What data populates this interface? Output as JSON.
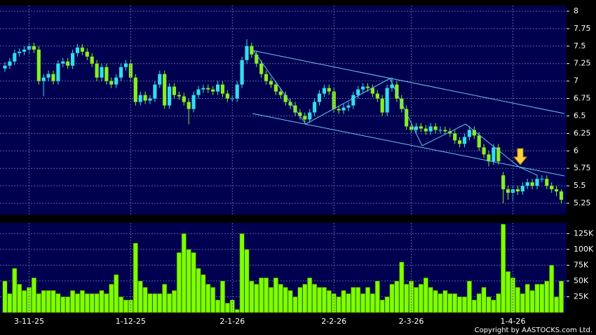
{
  "chart_data": [
    {
      "type": "candlestick",
      "up_color": "#33ddee",
      "down_color": "#88ee22",
      "grid": true,
      "ylim": [
        5.09,
        8.08
      ],
      "yticks": [
        5.25,
        5.5,
        5.75,
        6,
        6.25,
        6.5,
        6.75,
        7,
        7.25,
        7.5,
        7.75,
        8
      ],
      "open": [
        7.18,
        7.22,
        7.28,
        7.4,
        7.42,
        7.45,
        7.5,
        7.45,
        7.0,
        7.05,
        7.1,
        7.0,
        7.25,
        7.28,
        7.22,
        7.4,
        7.48,
        7.42,
        7.35,
        7.25,
        7.05,
        7.2,
        7.0,
        6.95,
        7.05,
        7.2,
        7.25,
        7.05,
        6.7,
        6.8,
        6.72,
        6.75,
        6.95,
        7.1,
        6.65,
        6.92,
        6.8,
        6.78,
        6.7,
        6.6,
        6.8,
        6.88,
        6.9,
        6.88,
        6.85,
        6.95,
        6.82,
        6.75,
        6.75,
        6.95,
        7.3,
        7.5,
        7.38,
        7.25,
        7.1,
        7.0,
        6.95,
        6.85,
        6.8,
        6.7,
        6.65,
        6.55,
        6.5,
        6.45,
        6.55,
        6.7,
        6.82,
        6.9,
        6.85,
        6.6,
        6.58,
        6.62,
        6.65,
        6.8,
        6.88,
        6.92,
        6.9,
        6.82,
        6.75,
        6.55,
        6.9,
        6.95,
        6.75,
        6.6,
        6.35,
        6.3,
        6.35,
        6.32,
        6.28,
        6.35,
        6.3,
        6.3,
        6.28,
        6.25,
        6.15,
        6.1,
        6.2,
        6.3,
        6.22,
        6.05,
        5.95,
        5.85,
        6.05,
        5.65,
        5.45,
        5.4,
        5.45,
        5.42,
        5.5,
        5.55,
        5.5,
        5.6,
        5.6,
        5.5,
        5.45,
        5.42
      ],
      "high": [
        7.27,
        7.33,
        7.45,
        7.47,
        7.5,
        7.55,
        7.55,
        7.5,
        7.1,
        7.15,
        7.15,
        7.3,
        7.33,
        7.33,
        7.45,
        7.53,
        7.53,
        7.47,
        7.4,
        7.3,
        7.25,
        7.25,
        7.05,
        7.1,
        7.25,
        7.3,
        7.3,
        7.1,
        6.85,
        6.85,
        6.8,
        7.0,
        7.15,
        7.15,
        6.97,
        6.97,
        6.85,
        6.83,
        6.75,
        6.85,
        6.93,
        6.95,
        6.95,
        6.93,
        7.0,
        7.0,
        6.87,
        6.8,
        7.0,
        7.35,
        7.6,
        7.55,
        7.43,
        7.3,
        7.15,
        7.05,
        7.0,
        6.9,
        6.85,
        6.75,
        6.7,
        6.6,
        6.55,
        6.6,
        6.75,
        6.87,
        6.95,
        6.95,
        6.9,
        6.65,
        6.67,
        6.7,
        6.85,
        6.93,
        6.97,
        6.97,
        6.95,
        6.87,
        6.8,
        6.95,
        7.05,
        7.0,
        6.8,
        6.65,
        6.4,
        6.4,
        6.4,
        6.37,
        6.4,
        6.4,
        6.35,
        6.35,
        6.33,
        6.3,
        6.2,
        6.25,
        6.35,
        6.35,
        6.27,
        6.1,
        6.0,
        6.1,
        6.1,
        5.7,
        5.5,
        5.5,
        5.5,
        5.55,
        5.6,
        5.6,
        5.65,
        5.65,
        5.65,
        5.55,
        5.5,
        5.45
      ],
      "low": [
        7.13,
        7.17,
        7.23,
        7.35,
        7.37,
        7.4,
        7.4,
        6.95,
        6.78,
        7.0,
        6.95,
        6.95,
        7.2,
        7.17,
        7.17,
        7.35,
        7.37,
        7.3,
        7.2,
        7.0,
        7.0,
        6.95,
        6.9,
        6.9,
        7.0,
        7.15,
        7.0,
        6.65,
        6.65,
        6.67,
        6.67,
        6.7,
        6.9,
        6.6,
        6.6,
        6.75,
        6.73,
        6.65,
        6.38,
        6.55,
        6.75,
        6.83,
        6.83,
        6.8,
        6.8,
        6.77,
        6.7,
        6.7,
        6.7,
        6.9,
        7.25,
        7.33,
        7.2,
        7.05,
        6.95,
        6.9,
        6.8,
        6.75,
        6.65,
        6.6,
        6.5,
        6.45,
        6.4,
        6.4,
        6.5,
        6.65,
        6.77,
        6.8,
        6.55,
        6.53,
        6.53,
        6.57,
        6.6,
        6.75,
        6.83,
        6.85,
        6.77,
        6.7,
        6.5,
        6.5,
        6.85,
        6.7,
        6.55,
        6.3,
        6.25,
        6.25,
        6.27,
        6.23,
        6.23,
        6.25,
        6.25,
        6.23,
        6.2,
        6.1,
        6.05,
        6.05,
        6.15,
        6.17,
        6.0,
        5.9,
        5.78,
        5.8,
        5.8,
        5.25,
        5.3,
        5.28,
        5.37,
        5.37,
        5.45,
        5.45,
        5.45,
        5.55,
        5.45,
        5.4,
        5.35,
        5.25
      ],
      "close": [
        7.22,
        7.28,
        7.4,
        7.42,
        7.45,
        7.5,
        7.45,
        7.0,
        7.05,
        7.1,
        7.0,
        7.25,
        7.28,
        7.22,
        7.4,
        7.48,
        7.42,
        7.35,
        7.25,
        7.05,
        7.2,
        7.0,
        6.95,
        7.05,
        7.2,
        7.25,
        7.05,
        6.7,
        6.8,
        6.72,
        6.75,
        6.95,
        7.1,
        6.65,
        6.92,
        6.8,
        6.78,
        6.7,
        6.6,
        6.8,
        6.88,
        6.9,
        6.88,
        6.85,
        6.95,
        6.82,
        6.75,
        6.75,
        6.95,
        7.3,
        7.5,
        7.38,
        7.25,
        7.1,
        7.0,
        6.95,
        6.85,
        6.8,
        6.7,
        6.65,
        6.55,
        6.5,
        6.45,
        6.55,
        6.7,
        6.82,
        6.9,
        6.85,
        6.6,
        6.58,
        6.62,
        6.65,
        6.8,
        6.88,
        6.92,
        6.9,
        6.82,
        6.75,
        6.55,
        6.9,
        6.95,
        6.75,
        6.6,
        6.35,
        6.3,
        6.35,
        6.32,
        6.28,
        6.35,
        6.3,
        6.3,
        6.28,
        6.25,
        6.15,
        6.1,
        6.2,
        6.3,
        6.22,
        6.05,
        5.95,
        5.85,
        6.05,
        5.85,
        5.45,
        5.4,
        5.45,
        5.42,
        5.5,
        5.55,
        5.5,
        5.6,
        5.6,
        5.5,
        5.45,
        5.42,
        5.3
      ]
    },
    {
      "type": "bar",
      "color": "#7fff00",
      "grid": true,
      "categories": [
        null,
        null,
        null,
        null,
        null,
        "3-11-25",
        null,
        null,
        null,
        null,
        null,
        null,
        null,
        null,
        null,
        null,
        null,
        null,
        null,
        null,
        null,
        null,
        null,
        null,
        null,
        null,
        "1-12-25",
        null,
        null,
        null,
        null,
        null,
        null,
        null,
        null,
        null,
        null,
        null,
        null,
        null,
        null,
        null,
        null,
        null,
        null,
        null,
        null,
        "2-1-26",
        null,
        null,
        null,
        null,
        null,
        null,
        null,
        null,
        null,
        null,
        null,
        null,
        null,
        null,
        null,
        null,
        null,
        null,
        null,
        null,
        "2-2-26",
        null,
        null,
        null,
        null,
        null,
        null,
        null,
        null,
        null,
        null,
        null,
        null,
        null,
        null,
        null,
        "2-3-26",
        null,
        null,
        null,
        null,
        null,
        null,
        null,
        null,
        null,
        null,
        null,
        null,
        null,
        null,
        null,
        null,
        null,
        null,
        null,
        null,
        "1-4-26",
        null,
        null,
        null,
        null,
        null,
        null,
        null,
        null,
        null,
        null
      ],
      "values": [
        50000,
        30000,
        70000,
        45000,
        35000,
        40000,
        55000,
        30000,
        35000,
        35000,
        35000,
        30000,
        25000,
        25000,
        35000,
        30000,
        35000,
        30000,
        30000,
        30000,
        35000,
        30000,
        45000,
        60000,
        25000,
        20000,
        20000,
        110000,
        50000,
        40000,
        30000,
        30000,
        30000,
        45000,
        30000,
        35000,
        95000,
        125000,
        100000,
        95000,
        70000,
        60000,
        45000,
        40000,
        20000,
        50000,
        15000,
        20000,
        5000,
        125000,
        100000,
        50000,
        45000,
        55000,
        55000,
        40000,
        55000,
        45000,
        40000,
        35000,
        25000,
        40000,
        45000,
        55000,
        45000,
        40000,
        40000,
        35000,
        30000,
        25000,
        35000,
        30000,
        40000,
        40000,
        30000,
        40000,
        30000,
        50000,
        20000,
        25000,
        45000,
        50000,
        80000,
        45000,
        50000,
        40000,
        45000,
        55000,
        40000,
        35000,
        30000,
        35000,
        30000,
        30000,
        25000,
        25000,
        50000,
        20000,
        30000,
        40000,
        25000,
        20000,
        30000,
        140000,
        65000,
        55000,
        40000,
        30000,
        45000,
        35000,
        45000,
        45000,
        50000,
        75000,
        25000,
        50000
      ],
      "ylim": [
        0,
        142000
      ],
      "yticks": [
        {
          "value": 25000,
          "label": "25K"
        },
        {
          "value": 50000,
          "label": "50K"
        },
        {
          "value": 75000,
          "label": "75K"
        },
        {
          "value": 100000,
          "label": "100K"
        },
        {
          "value": 125000,
          "label": "125K"
        }
      ]
    }
  ],
  "copyright": "Copyright by AASTOCKS.com Ltd."
}
